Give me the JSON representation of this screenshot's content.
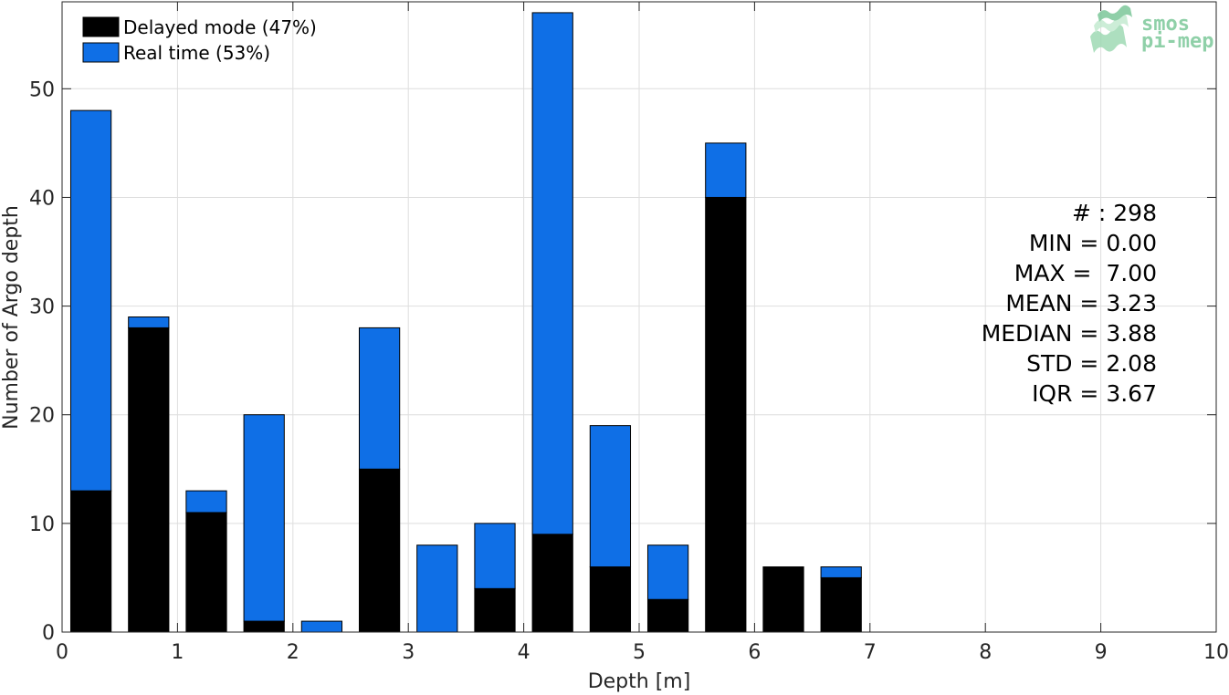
{
  "chart_data": {
    "type": "bar",
    "stacked": true,
    "bin_edges": [
      0,
      0.5,
      1,
      1.5,
      2,
      2.5,
      3,
      3.5,
      4,
      4.5,
      5,
      5.5,
      6,
      6.5,
      7
    ],
    "series": [
      {
        "name": "Delayed mode (47%)",
        "color": "#000000",
        "values": [
          13,
          28,
          11,
          1,
          0,
          15,
          0,
          4,
          9,
          6,
          3,
          40,
          6,
          5
        ]
      },
      {
        "name": "Real time (53%)",
        "color": "#0f6fe6",
        "values": [
          35,
          1,
          2,
          19,
          1,
          13,
          8,
          6,
          48,
          13,
          5,
          5,
          0,
          1
        ]
      }
    ],
    "xlabel": "Depth [m]",
    "ylabel": "Number of Argo depth",
    "xlim": [
      0,
      10
    ],
    "ylim": [
      0,
      58
    ],
    "xticks": [
      0,
      1,
      2,
      3,
      4,
      5,
      6,
      7,
      8,
      9,
      10
    ],
    "yticks": [
      0,
      10,
      20,
      30,
      40,
      50
    ],
    "grid": true,
    "legend_position": "top-left",
    "stats": [
      "# : 298",
      "MIN = 0.00",
      "MAX =  7.00",
      "MEAN = 3.23",
      "MEDIAN = 3.88",
      "STD = 2.08",
      "IQR = 3.67"
    ]
  },
  "logo": {
    "line1": "smos",
    "line2": "pi-mep",
    "color": "#8fd0a8"
  }
}
